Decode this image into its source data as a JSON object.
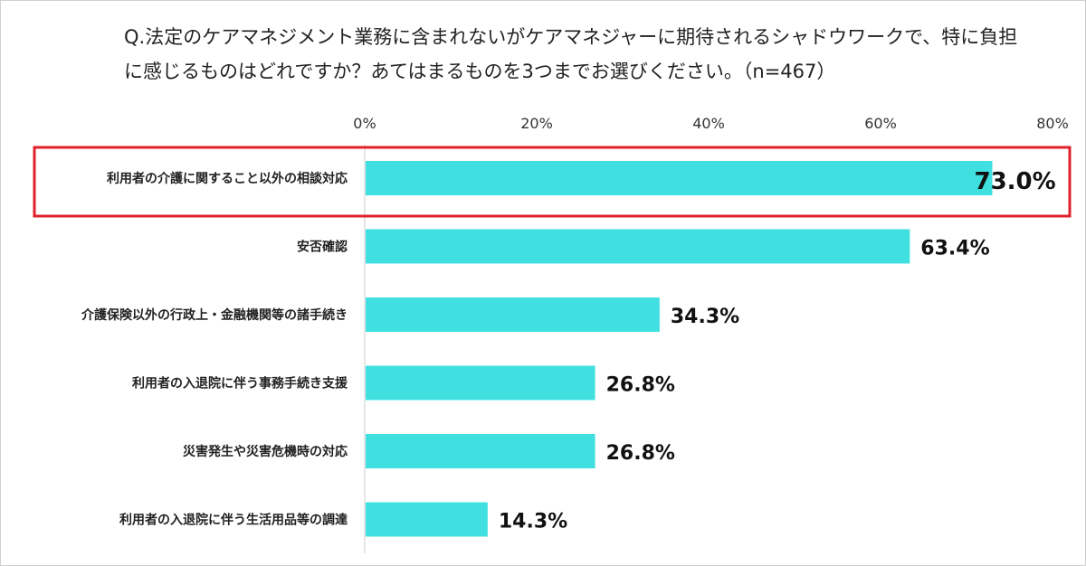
{
  "title_lines": [
    "Q.法定のケアマネジメント業務に含まれないがケアマネジャーに期待されるシャドウワークで、特に負担",
    "に感じるものはどれですか？あてはまるものを3つまでお選びください。（n=467）"
  ],
  "chart_data": {
    "type": "bar",
    "orientation": "horizontal",
    "title": "Q.法定のケアマネジメント業務に含まれないがケアマネジャーに期待されるシャドウワークで、特に負担に感じるものはどれですか？あてはまるものを3つまでお選びください。（n=467）",
    "categories": [
      "利用者の介護に関すること以外の相談対応",
      "安否確認",
      "介護保険以外の行政上・金融機関等の諸手続き",
      "利用者の入退院に伴う事務手続き支援",
      "災害発生や災害危機時の対応",
      "利用者の入退院に伴う生活用品等の調達"
    ],
    "values": [
      73.0,
      63.4,
      34.3,
      26.8,
      26.8,
      14.3
    ],
    "value_labels": [
      "73.0%",
      "63.4%",
      "34.3%",
      "26.8%",
      "26.8%",
      "14.3%"
    ],
    "xlim": [
      0,
      80
    ],
    "xticks": [
      0,
      20,
      40,
      60,
      80
    ],
    "xtick_labels": [
      "0%",
      "20%",
      "40%",
      "60%",
      "80%"
    ],
    "xlabel": "",
    "ylabel": "",
    "axis_position": "top",
    "grid": false,
    "highlight_index": 0,
    "colors": {
      "bar": "#40E0E0",
      "highlight_border": "#E0202A",
      "axis": "#cccccc"
    }
  }
}
